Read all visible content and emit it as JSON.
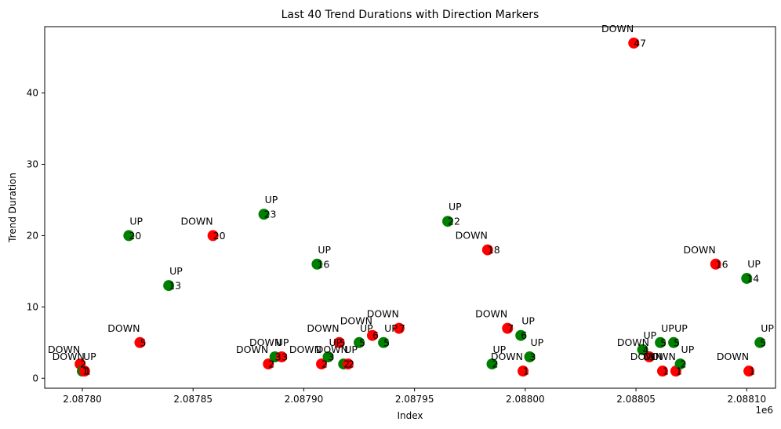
{
  "chart_data": {
    "type": "scatter",
    "title": "Last 40 Trend Durations with Direction Markers",
    "xlabel": "Index",
    "ylabel": "Trend Duration",
    "x_offset_label": "1e6",
    "xlim": [
      2.087783,
      2.088113
    ],
    "ylim": [
      -1.4,
      49.3
    ],
    "xticks": [
      {
        "value": 2.0878,
        "label": "2.08780"
      },
      {
        "value": 2.08785,
        "label": "2.08785"
      },
      {
        "value": 2.0879,
        "label": "2.08790"
      },
      {
        "value": 2.08795,
        "label": "2.08795"
      },
      {
        "value": 2.088,
        "label": "2.08800"
      },
      {
        "value": 2.08805,
        "label": "2.08805"
      },
      {
        "value": 2.0881,
        "label": "2.08810"
      }
    ],
    "yticks": [
      {
        "value": 0,
        "label": "0"
      },
      {
        "value": 10,
        "label": "10"
      },
      {
        "value": 20,
        "label": "20"
      },
      {
        "value": 30,
        "label": "30"
      },
      {
        "value": 40,
        "label": "40"
      }
    ],
    "grid": false,
    "colors": {
      "UP": "#008000",
      "DOWN": "#ff0000"
    },
    "points": [
      {
        "x": 2.087799,
        "y": 2,
        "direction": "DOWN",
        "label": "2"
      },
      {
        "x": 2.0878,
        "y": 1,
        "direction": "UP",
        "label": "1"
      },
      {
        "x": 2.087801,
        "y": 1,
        "direction": "DOWN",
        "label": "1"
      },
      {
        "x": 2.087821,
        "y": 20,
        "direction": "UP",
        "label": "20"
      },
      {
        "x": 2.087826,
        "y": 5,
        "direction": "DOWN",
        "label": "5"
      },
      {
        "x": 2.087839,
        "y": 13,
        "direction": "UP",
        "label": "13"
      },
      {
        "x": 2.087859,
        "y": 20,
        "direction": "DOWN",
        "label": "20"
      },
      {
        "x": 2.087882,
        "y": 23,
        "direction": "UP",
        "label": "23"
      },
      {
        "x": 2.087884,
        "y": 2,
        "direction": "DOWN",
        "label": "2"
      },
      {
        "x": 2.087887,
        "y": 3,
        "direction": "UP",
        "label": "3"
      },
      {
        "x": 2.08789,
        "y": 3,
        "direction": "DOWN",
        "label": "3"
      },
      {
        "x": 2.087906,
        "y": 16,
        "direction": "UP",
        "label": "16"
      },
      {
        "x": 2.087908,
        "y": 2,
        "direction": "DOWN",
        "label": "2"
      },
      {
        "x": 2.087911,
        "y": 3,
        "direction": "UP",
        "label": "3"
      },
      {
        "x": 2.087916,
        "y": 5,
        "direction": "DOWN",
        "label": "5"
      },
      {
        "x": 2.087918,
        "y": 2,
        "direction": "UP",
        "label": "2"
      },
      {
        "x": 2.08792,
        "y": 2,
        "direction": "DOWN",
        "label": "2"
      },
      {
        "x": 2.087925,
        "y": 5,
        "direction": "UP",
        "label": "5"
      },
      {
        "x": 2.087931,
        "y": 6,
        "direction": "DOWN",
        "label": "6"
      },
      {
        "x": 2.087936,
        "y": 5,
        "direction": "UP",
        "label": "5"
      },
      {
        "x": 2.087943,
        "y": 7,
        "direction": "DOWN",
        "label": "7"
      },
      {
        "x": 2.087965,
        "y": 22,
        "direction": "UP",
        "label": "22"
      },
      {
        "x": 2.087983,
        "y": 18,
        "direction": "DOWN",
        "label": "18"
      },
      {
        "x": 2.087985,
        "y": 2,
        "direction": "UP",
        "label": "2"
      },
      {
        "x": 2.087992,
        "y": 7,
        "direction": "DOWN",
        "label": "7"
      },
      {
        "x": 2.087998,
        "y": 6,
        "direction": "UP",
        "label": "6"
      },
      {
        "x": 2.087999,
        "y": 1,
        "direction": "DOWN",
        "label": "1"
      },
      {
        "x": 2.088002,
        "y": 3,
        "direction": "UP",
        "label": "3"
      },
      {
        "x": 2.088049,
        "y": 47,
        "direction": "DOWN",
        "label": "47"
      },
      {
        "x": 2.088053,
        "y": 4,
        "direction": "UP",
        "label": "4"
      },
      {
        "x": 2.088056,
        "y": 3,
        "direction": "DOWN",
        "label": "3"
      },
      {
        "x": 2.088061,
        "y": 5,
        "direction": "UP",
        "label": "5"
      },
      {
        "x": 2.088062,
        "y": 1,
        "direction": "DOWN",
        "label": "1"
      },
      {
        "x": 2.088067,
        "y": 5,
        "direction": "UP",
        "label": "5"
      },
      {
        "x": 2.088068,
        "y": 1,
        "direction": "DOWN",
        "label": "1"
      },
      {
        "x": 2.08807,
        "y": 2,
        "direction": "UP",
        "label": "2"
      },
      {
        "x": 2.088086,
        "y": 16,
        "direction": "DOWN",
        "label": "16"
      },
      {
        "x": 2.0881,
        "y": 14,
        "direction": "UP",
        "label": "14"
      },
      {
        "x": 2.088101,
        "y": 1,
        "direction": "DOWN",
        "label": "1"
      },
      {
        "x": 2.088106,
        "y": 5,
        "direction": "UP",
        "label": "5"
      }
    ]
  }
}
